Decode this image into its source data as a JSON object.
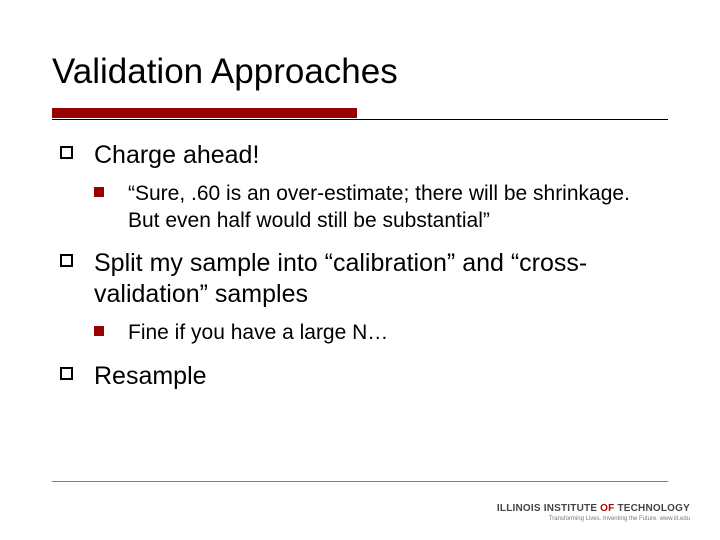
{
  "slide": {
    "title": "Validation Approaches",
    "title_fontsize": 35,
    "title_color": "#000000",
    "underline": {
      "red_color": "#990000",
      "red_height": 10,
      "red_width": 305,
      "thin_color": "#000000",
      "thin_width": 616
    },
    "bullets": [
      {
        "level": 1,
        "text": "Charge ahead!",
        "marker": {
          "type": "hollow-square",
          "color": "#000000",
          "size": 13
        }
      },
      {
        "level": 2,
        "text": "“Sure, .60 is an over-estimate; there will be shrinkage.  But even half would still be substantial”",
        "marker": {
          "type": "filled-square",
          "color": "#990000",
          "size": 10
        }
      },
      {
        "level": 1,
        "text": "Split my sample into “calibration” and “cross-validation” samples",
        "marker": {
          "type": "hollow-square",
          "color": "#000000",
          "size": 13
        }
      },
      {
        "level": 2,
        "text": "Fine if you have a large N…",
        "marker": {
          "type": "filled-square",
          "color": "#990000",
          "size": 10
        }
      },
      {
        "level": 1,
        "text": "Resample",
        "marker": {
          "type": "hollow-square",
          "color": "#000000",
          "size": 13
        }
      }
    ],
    "body_fontsize_lvl1": 25,
    "body_fontsize_lvl2": 21,
    "background_color": "#ffffff"
  },
  "footer": {
    "line_color": "#808080",
    "logo_line1_pre": "ILLINOIS INSTITUTE",
    "logo_line1_of": " OF ",
    "logo_line1_post": "TECHNOLOGY",
    "logo_tagline": "Transforming Lives. Inventing the Future. www.iit.edu"
  }
}
